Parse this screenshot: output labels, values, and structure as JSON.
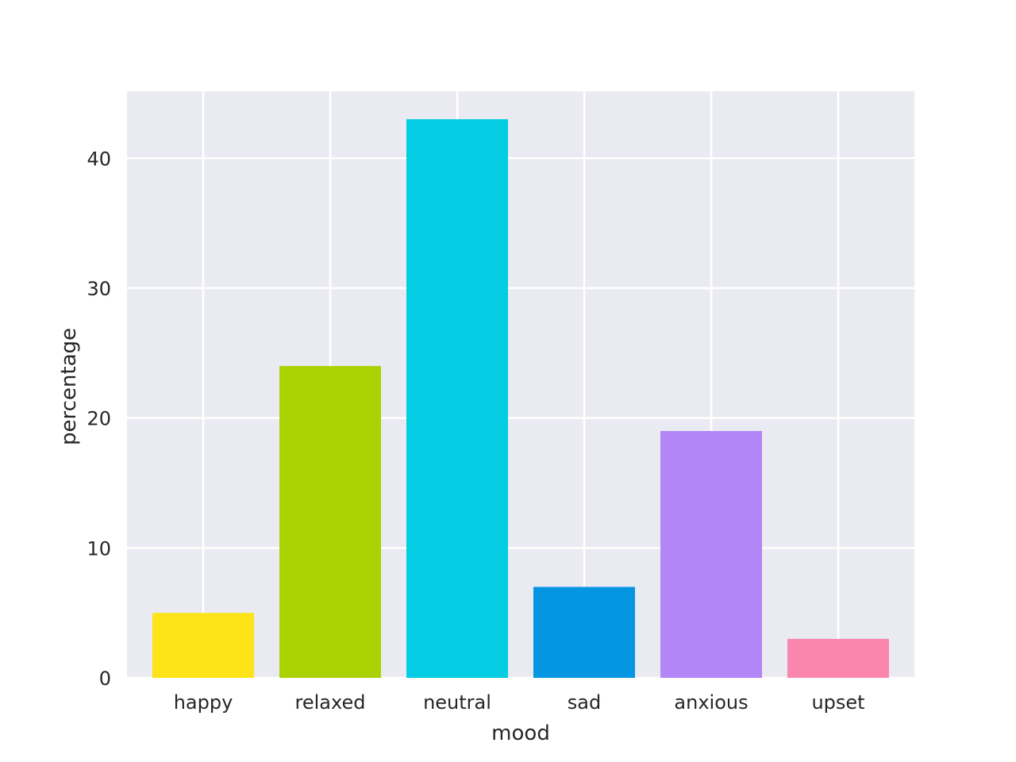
{
  "chart_data": {
    "type": "bar",
    "title": "",
    "xlabel": "mood",
    "ylabel": "percentage",
    "categories": [
      "happy",
      "relaxed",
      "neutral",
      "sad",
      "anxious",
      "upset"
    ],
    "values": [
      5,
      24,
      43,
      7,
      19,
      3
    ],
    "colors": [
      "#fde317",
      "#aad203",
      "#04cde3",
      "#0496e3",
      "#b386f8",
      "#fa86ae"
    ],
    "ylim": [
      0,
      45.15
    ],
    "yticks": [
      0,
      10,
      20,
      30,
      40
    ],
    "grid": true,
    "plot_background": "#eaeaf2",
    "grid_color": "#ffffff",
    "legend": "none"
  }
}
